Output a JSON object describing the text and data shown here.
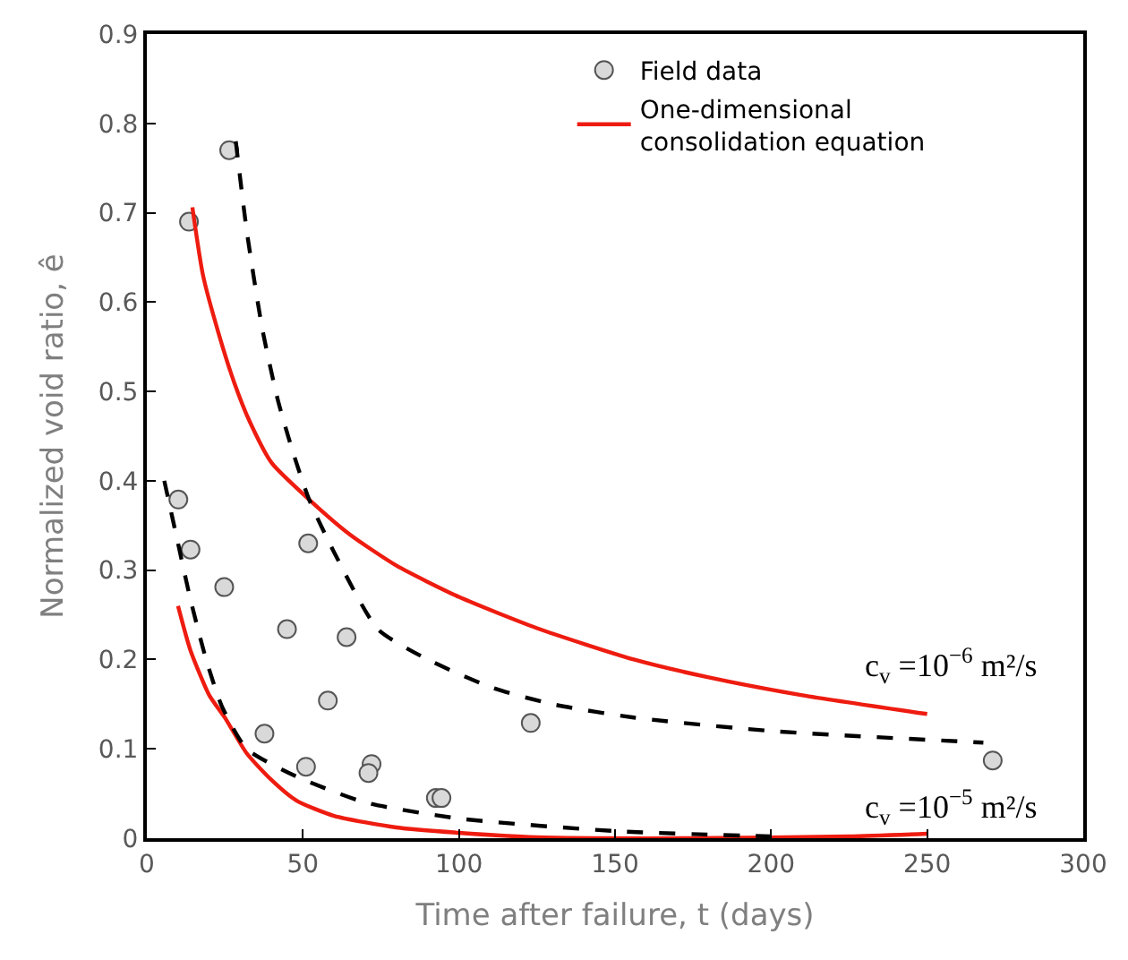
{
  "chart_data": {
    "type": "line",
    "xlabel": "Time after failure, t (days)",
    "ylabel": "Normalized void ratio, ê",
    "xlim": [
      0,
      300
    ],
    "xticks": [
      0,
      50,
      100,
      150,
      200,
      250,
      300
    ],
    "ylim": [
      0,
      0.9
    ],
    "yticks": [
      0,
      0.1,
      0.2,
      0.3,
      0.4,
      0.5,
      0.6,
      0.7,
      0.8,
      0.9
    ],
    "legend": "top right",
    "series": [
      {
        "name": "Field data",
        "type": "scatter",
        "marker": "circle",
        "color": "#d9d9d9",
        "x": [
          13.5,
          26.4,
          10.1,
          14,
          24.8,
          44.9,
          51.7,
          64,
          58,
          37.7,
          51,
          72,
          71,
          92.6,
          94.4,
          123,
          271
        ],
        "values": [
          0.69,
          0.77,
          0.379,
          0.323,
          0.281,
          0.234,
          0.33,
          0.225,
          0.154,
          0.117,
          0.08,
          0.083,
          0.073,
          0.045,
          0.045,
          0.129,
          0.087
        ]
      },
      {
        "name": "One-dimensional consolidation equation",
        "line_style": "solid",
        "color": "#ee1c10",
        "x": [
          14.6,
          18,
          23,
          28,
          33,
          40,
          52,
          65,
          80,
          100,
          125,
          156,
          180,
          210,
          250
        ],
        "values": [
          0.706,
          0.63,
          0.565,
          0.51,
          0.466,
          0.42,
          0.379,
          0.34,
          0.305,
          0.27,
          0.235,
          0.2,
          0.18,
          0.16,
          0.139
        ]
      },
      {
        "line_style": "solid",
        "color": "#ee1c10",
        "x": [
          10,
          14,
          20,
          25,
          32,
          40,
          48,
          60,
          80,
          100,
          125,
          175,
          225,
          250
        ],
        "values": [
          0.26,
          0.21,
          0.16,
          0.135,
          0.095,
          0.065,
          0.042,
          0.025,
          0.012,
          0.006,
          0.001,
          0,
          0.002,
          0.005
        ]
      },
      {
        "line_style": "dashed",
        "color": "#000000",
        "x": [
          28.5,
          32,
          37,
          42,
          47,
          52,
          60,
          74,
          90,
          111,
          130,
          156,
          200,
          268
        ],
        "values": [
          0.78,
          0.68,
          0.57,
          0.49,
          0.43,
          0.379,
          0.32,
          0.234,
          0.2,
          0.168,
          0.15,
          0.135,
          0.12,
          0.107
        ]
      },
      {
        "line_style": "dashed",
        "color": "#000000",
        "x": [
          5.6,
          10,
          14,
          19,
          24,
          32,
          48,
          70,
          100,
          150,
          200
        ],
        "values": [
          0.4,
          0.33,
          0.267,
          0.2,
          0.148,
          0.1,
          0.069,
          0.04,
          0.022,
          0.008,
          0.002
        ]
      }
    ],
    "annotations": [
      "c$_{v}$ =10$^{−6}$ m²/s",
      "c$_{v}$ =10$^{−5}$ m²/s"
    ]
  }
}
